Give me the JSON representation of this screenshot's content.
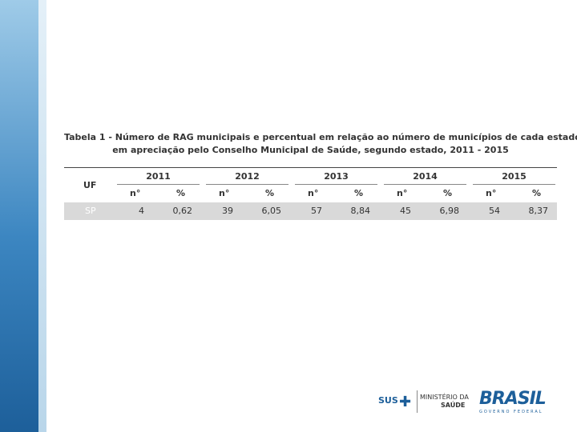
{
  "title": [
    "Tabela 1 - Número de RAG municipais e percentual em relação ao número de municípios de cada estado,",
    "em apreciação pelo Conselho Municipal de Saúde, segundo estado, 2011 - 2015"
  ],
  "table": {
    "uf_header": "UF",
    "years": [
      "2011",
      "2012",
      "2013",
      "2014",
      "2015"
    ],
    "subheaders": [
      "n°",
      "%"
    ],
    "rows": [
      [
        "SP",
        "4",
        "0,62",
        "39",
        "6,05",
        "57",
        "8,84",
        "45",
        "6,98",
        "54",
        "8,37"
      ]
    ]
  },
  "logos": {
    "sus": "SUS",
    "ministry": [
      "MINISTÉRIO DA",
      "SAÚDE"
    ],
    "brasil": "BRASIL",
    "government": "GOVERNO FEDERAL"
  }
}
